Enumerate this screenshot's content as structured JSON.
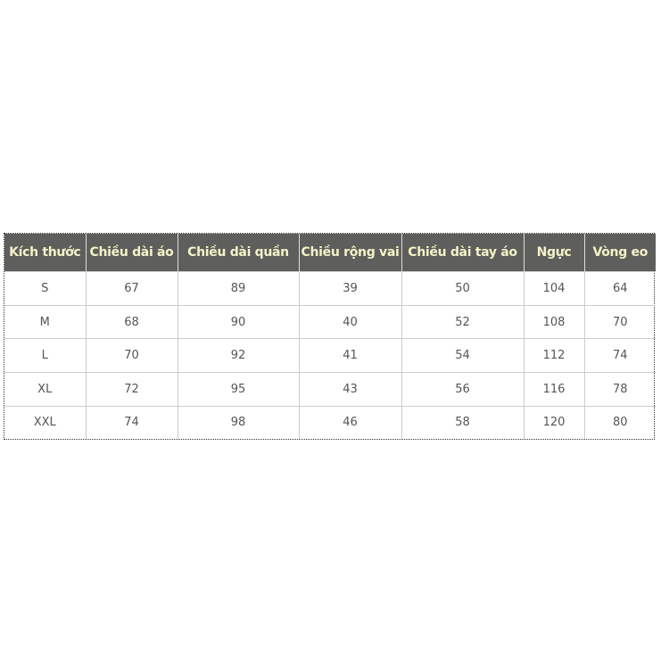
{
  "size_table": {
    "headers": [
      "Kích thước",
      "Chiều dài áo",
      "Chiều dài quần",
      "Chiều rộng vai",
      "Chiều dài tay áo",
      "Ngực",
      "Vòng eo"
    ],
    "rows": [
      [
        "S",
        "67",
        "89",
        "39",
        "50",
        "104",
        "64"
      ],
      [
        "M",
        "68",
        "90",
        "40",
        "52",
        "108",
        "70"
      ],
      [
        "L",
        "70",
        "92",
        "41",
        "54",
        "112",
        "74"
      ],
      [
        "XL",
        "72",
        "95",
        "43",
        "56",
        "116",
        "78"
      ],
      [
        "XXL",
        "74",
        "98",
        "46",
        "58",
        "120",
        "80"
      ]
    ],
    "colors": {
      "header_bg": "#5e5e5c",
      "header_text": "#f3f3c8",
      "cell_text": "#555555"
    }
  }
}
